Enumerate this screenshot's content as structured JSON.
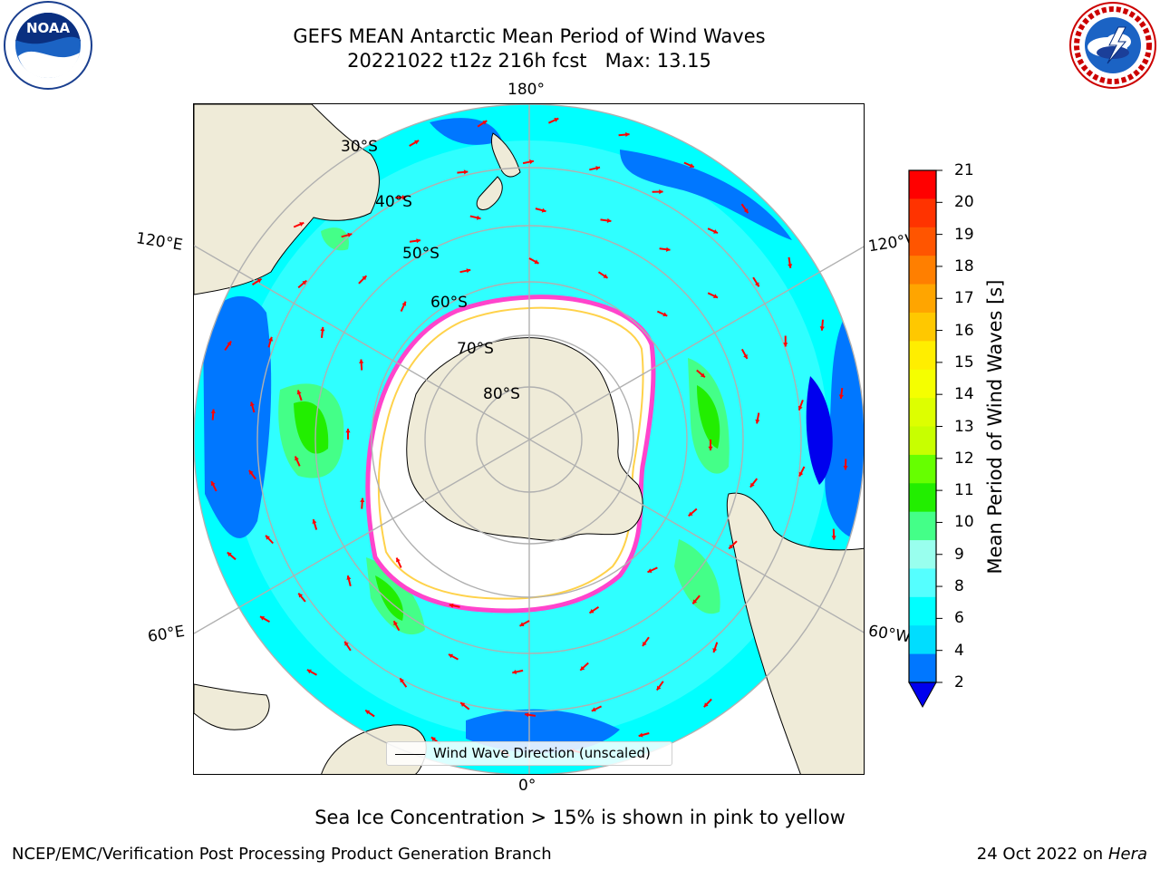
{
  "title": "GEFS MEAN Antarctic Mean Period of Wind Waves",
  "subtitle_line": "20221022 t12z 216h fcst   Max: 13.15",
  "longitude_labels": {
    "top": "180°",
    "bottom": "0°",
    "upper_left": "120°E",
    "upper_right": "120°W",
    "lower_left": "60°E",
    "lower_right": "60°W"
  },
  "latitude_labels": [
    "30°S",
    "40°S",
    "50°S",
    "60°S",
    "70°S",
    "80°S"
  ],
  "legend": {
    "line_label": "Wind Wave Direction (unscaled)"
  },
  "colorbar": {
    "label": "Mean Period of Wind Waves [s]",
    "ticks": [
      "21",
      "20",
      "19",
      "18",
      "17",
      "16",
      "15",
      "14",
      "13",
      "12",
      "11",
      "10",
      "9",
      "8",
      "6",
      "4",
      "2"
    ],
    "colors": [
      "#ff0000",
      "#ff3300",
      "#ff5500",
      "#ff7f00",
      "#ffa500",
      "#ffc800",
      "#ffee00",
      "#f5ff00",
      "#ddff00",
      "#c8ff00",
      "#66ff00",
      "#22ee00",
      "#44ff88",
      "#99ffee",
      "#55ffff",
      "#00ffff",
      "#00ddff",
      "#0077ff"
    ],
    "extend_color": "#0000ee"
  },
  "sea_ice_note": "Sea Ice Concentration > 15% is shown in pink to yellow",
  "footer": {
    "left": "NCEP/EMC/Verification Post Processing Product Generation Branch",
    "date": "24 Oct 2022 on",
    "host": "Hera"
  },
  "logos": {
    "left": "NOAA",
    "right": "NATIONAL WEATHER SERVICE"
  },
  "colors": {
    "land": "#efebd8",
    "ocean_base": "#00ffff",
    "ocean_light": "#55ffff",
    "ocean_mid": "#00ddff",
    "ocean_deep": "#0077ff",
    "ocean_darkest": "#0000ee",
    "wave_green": "#44ff88",
    "wave_bright_green": "#22ee00",
    "ice_edge": "#ff44cc",
    "arrow": "#ff0000",
    "grid": "#b0b0b0"
  }
}
